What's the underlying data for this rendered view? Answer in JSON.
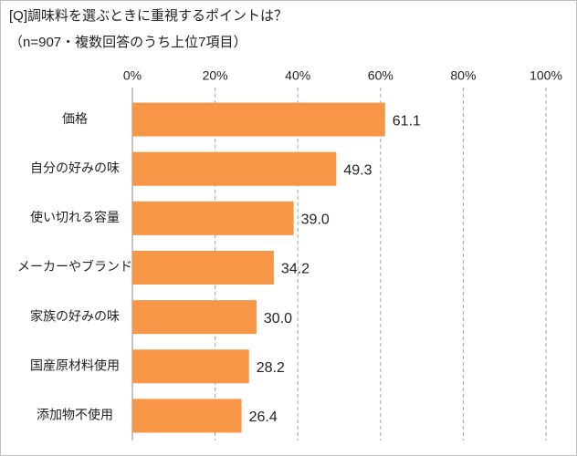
{
  "chart_data": {
    "type": "bar",
    "orientation": "horizontal",
    "title": "[Q]調味料を選ぶときに重視するポイントは？",
    "subtitle": "（n=907・複数回答のうち上位7項目）",
    "categories": [
      "価格",
      "自分の好みの味",
      "使い切れる容量",
      "メーカーやブランド",
      "家族の好みの味",
      "国産原材料使用",
      "添加物不使用"
    ],
    "values": [
      61.1,
      49.3,
      39.0,
      34.2,
      30.0,
      28.2,
      26.4
    ],
    "value_labels": [
      "61.1",
      "49.3",
      "39.0",
      "34.2",
      "30.0",
      "28.2",
      "26.4"
    ],
    "color": "#f79646",
    "xlim": [
      0,
      100
    ],
    "xticks": [
      {
        "value": 0,
        "label": "0%"
      },
      {
        "value": 20,
        "label": "20%"
      },
      {
        "value": 40,
        "label": "40%"
      },
      {
        "value": 60,
        "label": "60%"
      },
      {
        "value": 80,
        "label": "80%"
      },
      {
        "value": 100,
        "label": "100%"
      }
    ],
    "grid": true
  }
}
